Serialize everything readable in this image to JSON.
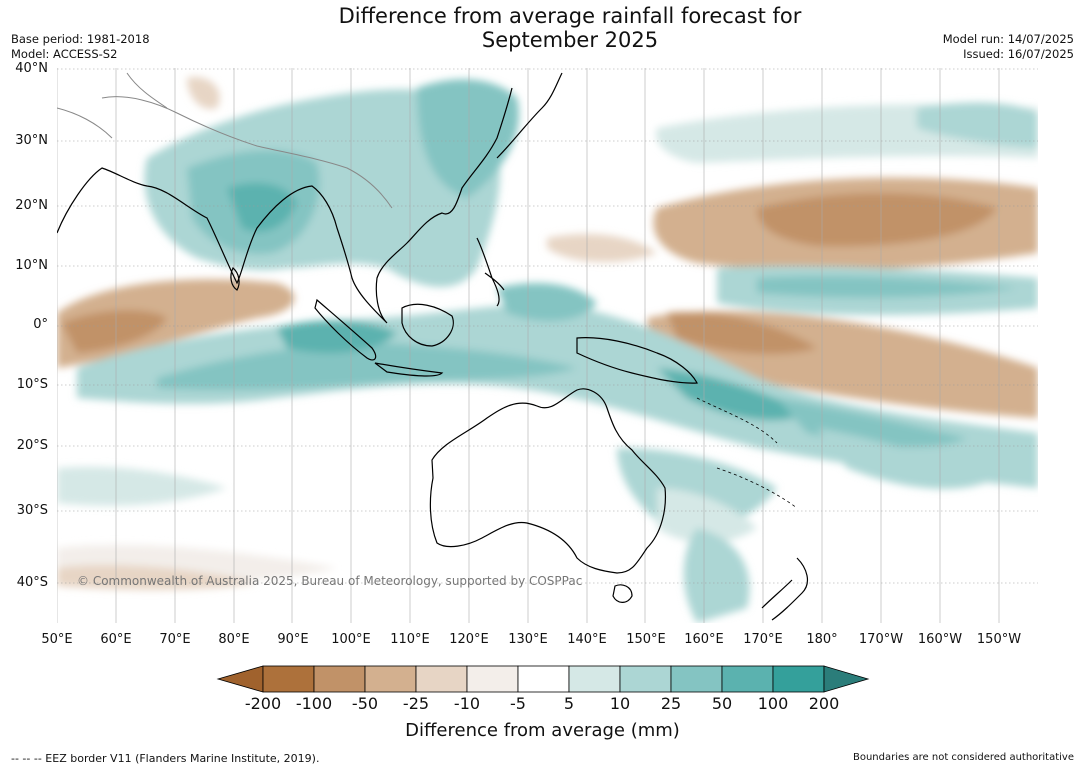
{
  "header": {
    "title_line1": "Difference from average rainfall forecast for",
    "title_line2": "September 2025",
    "base_period": "Base period: 1981-2018",
    "model": "Model: ACCESS-S2",
    "model_run": "Model run: 14/07/2025",
    "issued": "Issued: 16/07/2025"
  },
  "map": {
    "lat_labels": [
      "40°N",
      "30°N",
      "20°N",
      "10°N",
      "0°",
      "10°S",
      "20°S",
      "30°S",
      "40°S"
    ],
    "lon_labels": [
      "50°E",
      "60°E",
      "70°E",
      "80°E",
      "90°E",
      "100°E",
      "110°E",
      "120°E",
      "130°E",
      "140°E",
      "150°E",
      "160°E",
      "170°E",
      "180°",
      "170°W",
      "160°W",
      "150°W"
    ],
    "copyright": "© Commonwealth of Australia 2025, Bureau of Meteorology, supported by COSPPac"
  },
  "legend": {
    "colors": [
      "#a0622d",
      "#ad713b",
      "#c19268",
      "#d3b08f",
      "#e7d5c5",
      "#f3eeea",
      "#ffffff",
      "#d5e8e6",
      "#acd6d4",
      "#84c4c2",
      "#5bb2af",
      "#34a09b",
      "#2b7d7a"
    ],
    "tick_labels": [
      "-200",
      "-100",
      "-50",
      "-25",
      "-10",
      "-5",
      "5",
      "10",
      "25",
      "50",
      "100",
      "200"
    ],
    "title": "Difference from average (mm)"
  },
  "footer": {
    "eez": "--  --  -- EEZ border V11 (Flanders Marine Institute, 2019).",
    "note": "Boundaries are not considered authoritative"
  }
}
